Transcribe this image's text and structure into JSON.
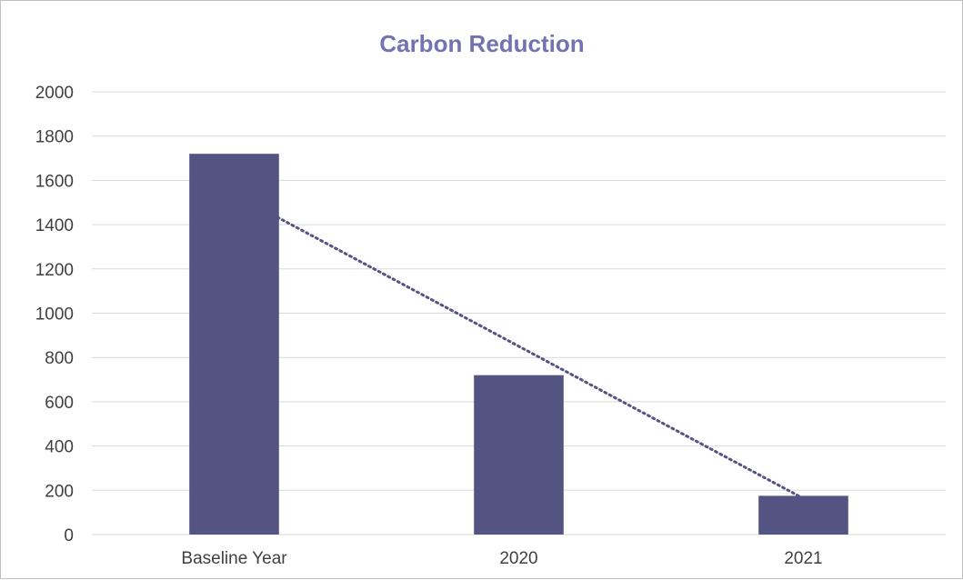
{
  "chart_data": {
    "type": "bar",
    "title": "Carbon Reduction",
    "xlabel": "",
    "ylabel": "",
    "categories": [
      "Baseline Year",
      "2020",
      "2021"
    ],
    "values": [
      1720,
      720,
      175
    ],
    "ylim": [
      0,
      2000
    ],
    "yticks": [
      0,
      200,
      400,
      600,
      800,
      1000,
      1200,
      1400,
      1600,
      1800,
      2000
    ],
    "grid": true,
    "legend": "none",
    "trendline": {
      "type": "linear",
      "style": "dotted",
      "fit_values": [
        1538,
        850,
        163
      ]
    },
    "colors": {
      "bar": "#545482",
      "trendline": "#545482",
      "title": "#7373b4",
      "grid": "#d9d9d9",
      "axis_text": "#404040"
    }
  }
}
